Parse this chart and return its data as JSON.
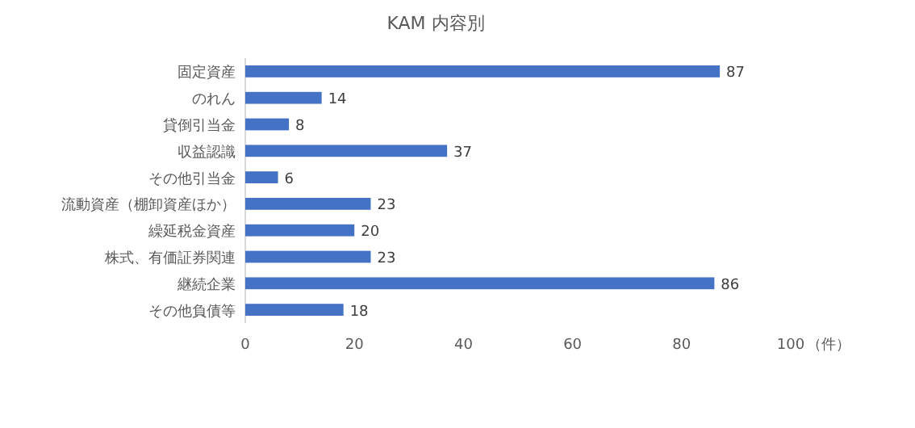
{
  "chart_data": {
    "type": "bar",
    "orientation": "horizontal",
    "title": "KAM  内容別",
    "xlabel": "（件）",
    "categories": [
      "固定資産",
      "のれん",
      "貸倒引当金",
      "収益認識",
      "その他引当金",
      "流動資産（棚卸資産ほか）",
      "繰延税金資産",
      "株式、有価証券関連",
      "継続企業",
      "その他負債等"
    ],
    "values": [
      87,
      14,
      8,
      37,
      6,
      23,
      20,
      23,
      86,
      18
    ],
    "color": "#4472c4",
    "xlim": [
      0,
      100
    ],
    "xticks": [
      0,
      20,
      40,
      60,
      80,
      100
    ],
    "data_labels": true
  }
}
